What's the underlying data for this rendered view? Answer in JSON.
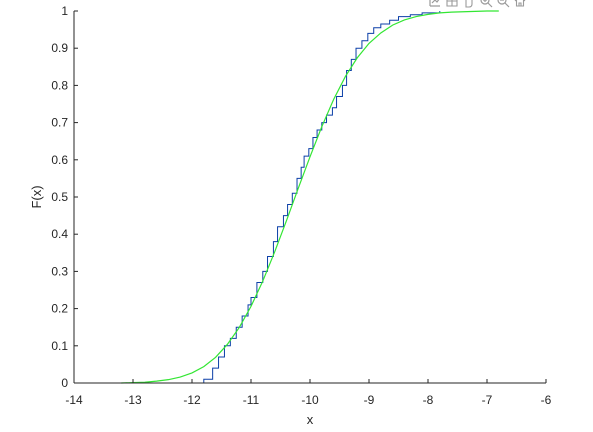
{
  "toolbar": {
    "icons": [
      "axes-icon",
      "grid-icon",
      "pan-icon",
      "zoom-in-icon",
      "zoom-out-icon",
      "home-icon"
    ]
  },
  "chart_data": {
    "type": "line",
    "xlabel": "x",
    "ylabel": "F(x)",
    "xlim": [
      -14,
      -6
    ],
    "ylim": [
      0,
      1
    ],
    "xticks": [
      -14,
      -13,
      -12,
      -11,
      -10,
      -9,
      -8,
      -7,
      -6
    ],
    "yticks": [
      0,
      0.1,
      0.2,
      0.3,
      0.4,
      0.5,
      0.6,
      0.7,
      0.8,
      0.9,
      1
    ],
    "xtick_labels": [
      "-14",
      "-13",
      "-12",
      "-11",
      "-10",
      "-9",
      "-8",
      "-7",
      "-6"
    ],
    "ytick_labels": [
      "0",
      "0.1",
      "0.2",
      "0.3",
      "0.4",
      "0.5",
      "0.6",
      "0.7",
      "0.8",
      "0.9",
      "1"
    ],
    "grid": false,
    "series": [
      {
        "kind": "step",
        "color": "#0b3fa8",
        "x": [
          -12.2,
          -11.8,
          -11.65,
          -11.55,
          -11.45,
          -11.35,
          -11.25,
          -11.15,
          -11.05,
          -11.0,
          -10.9,
          -10.8,
          -10.72,
          -10.62,
          -10.55,
          -10.45,
          -10.38,
          -10.3,
          -10.22,
          -10.15,
          -10.1,
          -10.02,
          -9.95,
          -9.88,
          -9.8,
          -9.72,
          -9.62,
          -9.55,
          -9.45,
          -9.38,
          -9.3,
          -9.22,
          -9.12,
          -9.02,
          -8.92,
          -8.8,
          -8.65,
          -8.5,
          -8.3,
          -8.1,
          -7.8
        ],
        "y": [
          0.0,
          0.01,
          0.04,
          0.07,
          0.1,
          0.12,
          0.15,
          0.18,
          0.21,
          0.23,
          0.27,
          0.3,
          0.34,
          0.38,
          0.42,
          0.45,
          0.48,
          0.51,
          0.55,
          0.58,
          0.61,
          0.63,
          0.66,
          0.68,
          0.7,
          0.72,
          0.74,
          0.77,
          0.8,
          0.84,
          0.87,
          0.9,
          0.92,
          0.94,
          0.955,
          0.965,
          0.975,
          0.985,
          0.99,
          0.995,
          1.0
        ]
      },
      {
        "kind": "line",
        "color": "#33e633",
        "x": [
          -13.2,
          -13.0,
          -12.8,
          -12.6,
          -12.4,
          -12.2,
          -12.0,
          -11.8,
          -11.6,
          -11.4,
          -11.2,
          -11.0,
          -10.8,
          -10.6,
          -10.4,
          -10.2,
          -10.0,
          -9.8,
          -9.6,
          -9.4,
          -9.2,
          -9.0,
          -8.8,
          -8.6,
          -8.4,
          -8.2,
          -8.0,
          -7.8,
          -7.6,
          -7.4,
          -7.2,
          -7.0,
          -6.8
        ],
        "y": [
          0.0,
          0.001,
          0.002,
          0.005,
          0.009,
          0.016,
          0.027,
          0.044,
          0.069,
          0.104,
          0.149,
          0.206,
          0.274,
          0.352,
          0.436,
          0.523,
          0.608,
          0.689,
          0.762,
          0.824,
          0.874,
          0.913,
          0.941,
          0.962,
          0.976,
          0.985,
          0.991,
          0.995,
          0.997,
          0.998,
          0.999,
          1.0,
          1.0
        ]
      }
    ]
  }
}
